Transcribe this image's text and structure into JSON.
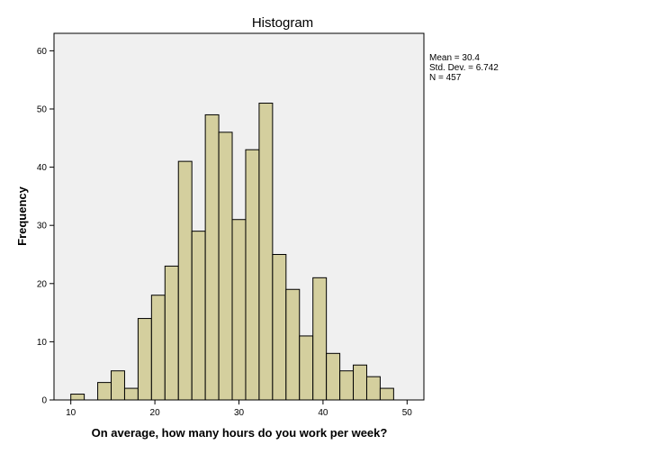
{
  "chart_data": {
    "type": "bar",
    "title": "Histogram",
    "xlabel": "On average, how many hours do you work per week?",
    "ylabel": "Frequency",
    "xlim": [
      8,
      52
    ],
    "ylim": [
      0,
      63
    ],
    "xticks": [
      10,
      20,
      30,
      40,
      50
    ],
    "yticks": [
      0,
      10,
      20,
      30,
      40,
      50,
      60
    ],
    "bin_width": 1.6,
    "bins": [
      {
        "start": 10.0,
        "value": 1
      },
      {
        "start": 11.6,
        "value": 0
      },
      {
        "start": 13.2,
        "value": 3
      },
      {
        "start": 14.8,
        "value": 5
      },
      {
        "start": 16.4,
        "value": 2
      },
      {
        "start": 18.0,
        "value": 14
      },
      {
        "start": 19.6,
        "value": 18
      },
      {
        "start": 21.2,
        "value": 23
      },
      {
        "start": 22.8,
        "value": 41
      },
      {
        "start": 24.4,
        "value": 29
      },
      {
        "start": 26.0,
        "value": 49
      },
      {
        "start": 27.6,
        "value": 46
      },
      {
        "start": 29.2,
        "value": 31
      },
      {
        "start": 30.8,
        "value": 43
      },
      {
        "start": 32.4,
        "value": 51
      },
      {
        "start": 34.0,
        "value": 25
      },
      {
        "start": 35.6,
        "value": 19
      },
      {
        "start": 37.2,
        "value": 11
      },
      {
        "start": 38.8,
        "value": 21
      },
      {
        "start": 40.4,
        "value": 8
      },
      {
        "start": 42.0,
        "value": 5
      },
      {
        "start": 43.6,
        "value": 6
      },
      {
        "start": 45.2,
        "value": 4
      },
      {
        "start": 46.8,
        "value": 2
      }
    ],
    "stats": {
      "mean": "Mean = 30.4",
      "sd": "Std. Dev. = 6.742",
      "n": "N = 457"
    },
    "colors": {
      "plot_background": "#f0f0f0",
      "bar_fill": "#d4cf9e",
      "bar_stroke": "#000000"
    },
    "grid": false
  }
}
